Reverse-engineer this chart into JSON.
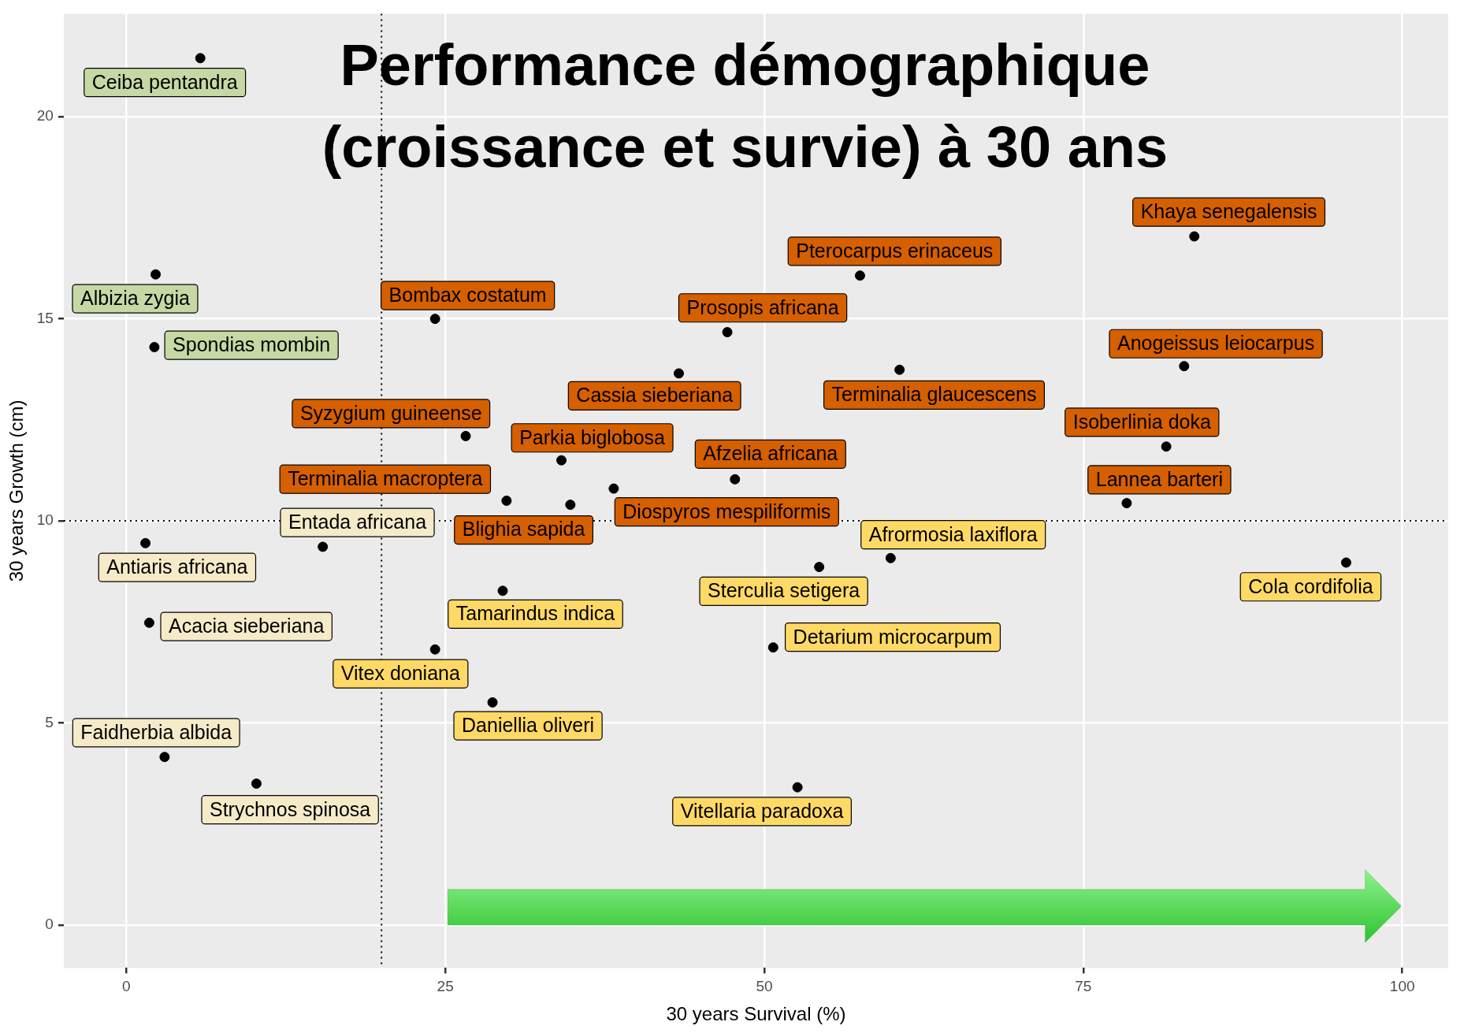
{
  "chart_data": {
    "type": "scatter",
    "title": "Performance démographique\n(croissance et survie) à 30 ans",
    "xlabel": "30 years Survival (%)",
    "ylabel": "30 years Growth (cm)",
    "xlim": [
      -4.9,
      103.6
    ],
    "ylim": [
      -1.06,
      22.55
    ],
    "xticks": [
      0,
      25,
      50,
      75,
      100
    ],
    "yticks": [
      0,
      5,
      10,
      15,
      20
    ],
    "grid": true,
    "legend": false,
    "marker": "circle",
    "series": [
      {
        "color": "#000000",
        "x": [
          5.8,
          2.3,
          2.2
        ],
        "values": [
          21.45,
          16.1,
          14.3
        ]
      },
      {
        "color": "#000000",
        "x": [
          24.2,
          26.6,
          29.8,
          34.8,
          34.1,
          43.3,
          38.2,
          47.1,
          57.5,
          47.7,
          60.6,
          83.7,
          82.9,
          81.5,
          78.4
        ],
        "values": [
          15.0,
          12.1,
          10.5,
          10.4,
          11.5,
          13.65,
          10.8,
          14.67,
          16.07,
          11.03,
          13.74,
          17.04,
          13.83,
          11.84,
          10.44
        ]
      },
      {
        "color": "#000000",
        "x": [
          15.4,
          1.5,
          1.8,
          3.0,
          10.2
        ],
        "values": [
          9.36,
          9.45,
          7.48,
          4.16,
          3.5
        ]
      },
      {
        "color": "#000000",
        "x": [
          29.5,
          24.2,
          28.7,
          54.3,
          59.9,
          50.7,
          52.6,
          95.6
        ],
        "values": [
          8.27,
          6.82,
          5.51,
          8.86,
          9.08,
          6.87,
          3.41,
          8.97
        ]
      }
    ],
    "annotations": [
      {
        "text": "Ceiba pentandra",
        "x": 5.8,
        "y": 21.45
      },
      {
        "text": "Albizia zygia",
        "x": 2.3,
        "y": 16.1
      },
      {
        "text": "Spondias mombin",
        "x": 2.2,
        "y": 14.3
      },
      {
        "text": "Bombax costatum",
        "x": 24.2,
        "y": 15.0
      },
      {
        "text": "Syzygium guineense",
        "x": 26.6,
        "y": 12.1
      },
      {
        "text": "Terminalia macroptera",
        "x": 29.8,
        "y": 10.5
      },
      {
        "text": "Blighia sapida",
        "x": 34.8,
        "y": 10.4
      },
      {
        "text": "Parkia biglobosa",
        "x": 34.1,
        "y": 11.5
      },
      {
        "text": "Cassia sieberiana",
        "x": 43.3,
        "y": 13.65
      },
      {
        "text": "Diospyros mespiliformis",
        "x": 38.2,
        "y": 10.8
      },
      {
        "text": "Prosopis africana",
        "x": 47.1,
        "y": 14.67
      },
      {
        "text": "Pterocarpus erinaceus",
        "x": 57.5,
        "y": 16.07
      },
      {
        "text": "Afzelia africana",
        "x": 47.7,
        "y": 11.03
      },
      {
        "text": "Terminalia glaucescens",
        "x": 60.6,
        "y": 13.74
      },
      {
        "text": "Khaya senegalensis",
        "x": 83.7,
        "y": 17.04
      },
      {
        "text": "Anogeissus leiocarpus",
        "x": 82.9,
        "y": 13.83
      },
      {
        "text": "Isoberlinia doka",
        "x": 81.5,
        "y": 11.84
      },
      {
        "text": "Lannea barteri",
        "x": 78.4,
        "y": 10.44
      },
      {
        "text": "Entada africana",
        "x": 15.4,
        "y": 9.36
      },
      {
        "text": "Antiaris africana",
        "x": 1.5,
        "y": 9.45
      },
      {
        "text": "Acacia sieberiana",
        "x": 1.8,
        "y": 7.48
      },
      {
        "text": "Faidherbia albida",
        "x": 3.0,
        "y": 4.16
      },
      {
        "text": "Strychnos spinosa",
        "x": 10.2,
        "y": 3.5
      },
      {
        "text": "Tamarindus indica",
        "x": 29.5,
        "y": 8.27
      },
      {
        "text": "Vitex doniana",
        "x": 24.2,
        "y": 6.82
      },
      {
        "text": "Daniellia oliveri",
        "x": 28.7,
        "y": 5.51
      },
      {
        "text": "Sterculia setigera",
        "x": 54.3,
        "y": 8.86
      },
      {
        "text": "Afrormosia laxiflora",
        "x": 59.9,
        "y": 9.08
      },
      {
        "text": "Detarium microcarpum",
        "x": 50.7,
        "y": 6.87
      },
      {
        "text": "Vitellaria paradoxa",
        "x": 52.6,
        "y": 3.41
      },
      {
        "text": "Cola cordifolia",
        "x": 95.6,
        "y": 8.97
      }
    ],
    "ref_lines": [
      {
        "axis": "x",
        "value": 20,
        "line_style": "dotted"
      },
      {
        "axis": "y",
        "value": 10,
        "line_style": "dotted"
      }
    ]
  }
}
